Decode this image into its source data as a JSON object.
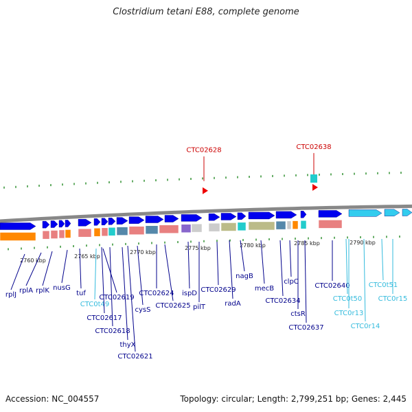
{
  "title": "Clostridium tetani E88, complete genome",
  "footer": {
    "accession": "Accession: NC_004557",
    "summary": "Topology: circular; Length: 2,799,251 bp; Genes: 2,445"
  },
  "colors": {
    "gene_dark_blue": "#0000ee",
    "gene_light_blue": "#33ccee",
    "label_blue": "#00008b",
    "label_cyan": "#33bbdd",
    "label_red": "#cc0000",
    "backbone": "#888888",
    "orange": "#ff8800",
    "pink": "#e88080",
    "gray": "#cccccc",
    "olive": "#bbbb88",
    "teal": "#22cccc",
    "steelblue": "#5588aa",
    "purple": "#8866cc",
    "tick_green": "#228822"
  },
  "scale_labels": [
    "2760 kbp",
    "2765 kbp",
    "2770 kbp",
    "2775 kbp",
    "2780 kbp",
    "2785 kbp",
    "2790 kbp"
  ],
  "highlighted_genes": [
    "CTC02628",
    "CTC02638"
  ],
  "gene_labels": [
    "rplJ",
    "rplA",
    "rplK",
    "nusG",
    "tuf",
    "CTC0t49",
    "CTC02619",
    "CTC02617",
    "CTC02618",
    "thyX",
    "CTC02621",
    "cysS",
    "CTC02624",
    "CTC02625",
    "ispD",
    "pilT",
    "CTC02629",
    "radA",
    "nagB",
    "mecB",
    "CTC02634",
    "clpC",
    "ctsR",
    "CTC02637",
    "CTC02640",
    "CTC0t50",
    "CTC0r13",
    "CTC0r14",
    "CTC0t51",
    "CTC0r15"
  ]
}
